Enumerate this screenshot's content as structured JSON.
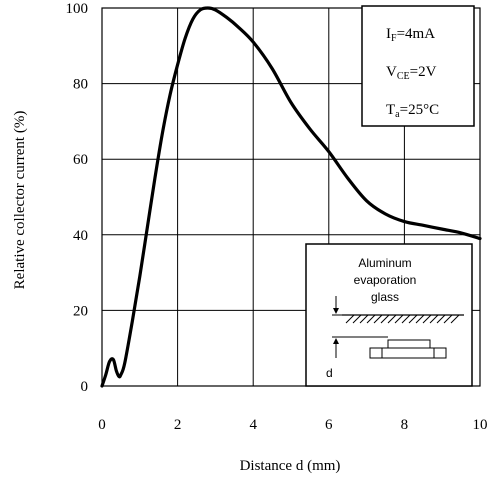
{
  "chart_data": {
    "type": "line",
    "xlabel": "Distance d (mm)",
    "ylabel": "Relative collector current (%)",
    "xlim": [
      0,
      10
    ],
    "ylim": [
      0,
      100
    ],
    "x_ticks": [
      "0",
      "2",
      "4",
      "6",
      "8",
      "10"
    ],
    "y_ticks": [
      "0",
      "20",
      "40",
      "60",
      "80",
      "100"
    ],
    "grid": true,
    "series": [
      {
        "x": [
          0,
          0.1,
          0.2,
          0.3,
          0.38,
          0.45,
          0.5,
          0.6,
          0.8,
          1.0,
          1.2,
          1.4,
          1.6,
          1.8,
          2.0,
          2.2,
          2.4,
          2.6,
          2.8,
          3.0,
          3.3,
          3.6,
          4.0,
          4.5,
          5.0,
          5.5,
          6.0,
          6.5,
          7.0,
          7.5,
          8.0,
          8.5,
          9.0,
          9.5,
          10.0
        ],
        "y": [
          0,
          3,
          6.5,
          7,
          4,
          2.5,
          3,
          6,
          17,
          29,
          42,
          55,
          67,
          77,
          85,
          92,
          97,
          99.5,
          100,
          99.5,
          97.5,
          95,
          91,
          84,
          75,
          68,
          62,
          55,
          49,
          45.5,
          43.5,
          42.5,
          41.5,
          40.5,
          39
        ]
      }
    ],
    "conditions": {
      "if": {
        "main": "I",
        "sub": "F",
        "value": "=4mA"
      },
      "vce": {
        "main": "V",
        "sub": "CE",
        "value": "=2V"
      },
      "ta": {
        "main": "T",
        "sub": "a",
        "value": "=25°C"
      }
    },
    "inset": {
      "line1": "Aluminum",
      "line2": "evaporation",
      "line3": "glass",
      "d_label": "d"
    }
  }
}
